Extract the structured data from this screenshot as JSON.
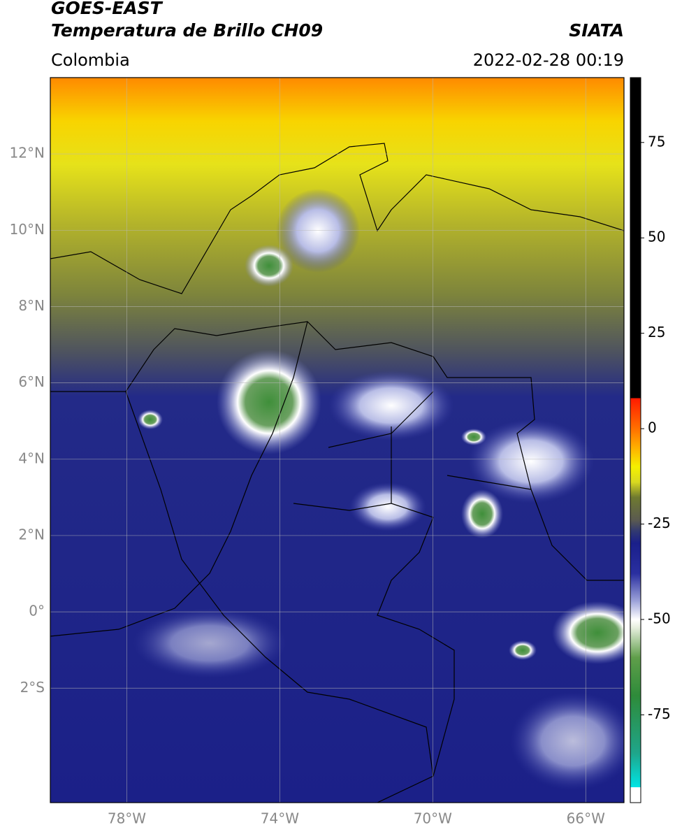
{
  "map": {
    "title_line1": "GOES-EAST",
    "title_line2": "Temperatura de Brillo CH09",
    "source": "SIATA",
    "region": "Colombia",
    "timestamp": "2022-02-28 00:19",
    "xlim": [
      -80,
      -65
    ],
    "ylim": [
      -5,
      14
    ],
    "xticks": [
      {
        "value": -78,
        "label": "78°W"
      },
      {
        "value": -74,
        "label": "74°W"
      },
      {
        "value": -70,
        "label": "70°W"
      },
      {
        "value": -66,
        "label": "66°W"
      }
    ],
    "yticks": [
      {
        "value": -2,
        "label": "2°S"
      },
      {
        "value": 0,
        "label": "0°"
      },
      {
        "value": 2,
        "label": "2°N"
      },
      {
        "value": 4,
        "label": "4°N"
      },
      {
        "value": 6,
        "label": "6°N"
      },
      {
        "value": 8,
        "label": "8°N"
      },
      {
        "value": 10,
        "label": "10°N"
      },
      {
        "value": 12,
        "label": "12°N"
      }
    ],
    "colorbar": {
      "lim": [
        -98,
        92
      ],
      "ticks": [
        -75,
        -50,
        -25,
        0,
        25,
        50,
        75
      ],
      "stops": [
        {
          "value": -98,
          "color": "#ffffff"
        },
        {
          "value": -94,
          "color": "#ffffff"
        },
        {
          "value": -94,
          "color": "#00e5e5"
        },
        {
          "value": -85,
          "color": "#1fa58a"
        },
        {
          "value": -70,
          "color": "#2e8b3a"
        },
        {
          "value": -60,
          "color": "#5f9e4a"
        },
        {
          "value": -52,
          "color": "#e8f0e0"
        },
        {
          "value": -50,
          "color": "#ffffff"
        },
        {
          "value": -45,
          "color": "#9aa0d8"
        },
        {
          "value": -38,
          "color": "#2a2fa0"
        },
        {
          "value": -30,
          "color": "#1a1f8a"
        },
        {
          "value": -27,
          "color": "#303872"
        },
        {
          "value": -24,
          "color": "#5a5a50"
        },
        {
          "value": -18,
          "color": "#6f7a30"
        },
        {
          "value": -14,
          "color": "#d9d920"
        },
        {
          "value": -10,
          "color": "#f5f000"
        },
        {
          "value": -5,
          "color": "#ffb000"
        },
        {
          "value": 0,
          "color": "#ff7000"
        },
        {
          "value": 8,
          "color": "#ff1a00"
        },
        {
          "value": 8,
          "color": "#000000"
        },
        {
          "value": 92,
          "color": "#000000"
        }
      ]
    }
  }
}
